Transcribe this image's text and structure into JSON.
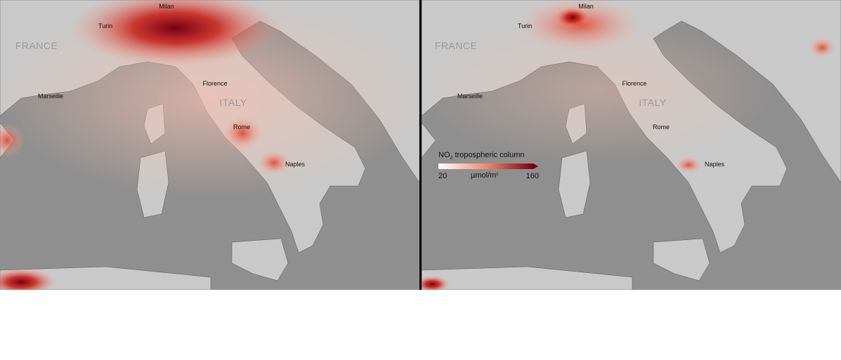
{
  "panels": [
    {
      "labels": [
        "Milan",
        "Turin",
        "FRANCE",
        "Marseille",
        "Florence",
        "ITALY",
        "Rome",
        "Naples"
      ]
    },
    {
      "labels": [
        "Milan",
        "Turin",
        "FRANCE",
        "Marseille",
        "Florence",
        "ITALY",
        "Rome",
        "Naples"
      ]
    }
  ],
  "legend": {
    "title_main": "NO",
    "title_sub": "2",
    "title_rest": " tropospheric column",
    "min": "20",
    "unit": "µmol/m",
    "unit_sup": "2",
    "max": "160"
  }
}
